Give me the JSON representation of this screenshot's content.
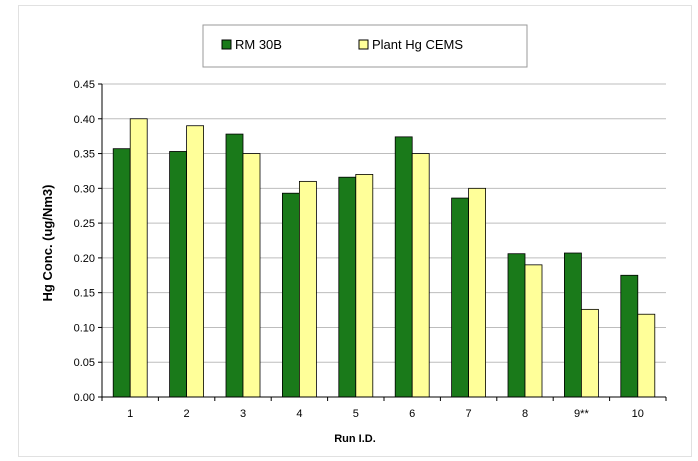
{
  "chart_data": {
    "type": "bar",
    "title": "",
    "xlabel": "Run I.D.",
    "ylabel": "Hg Conc. (ug/Nm3)",
    "categories": [
      "1",
      "2",
      "3",
      "4",
      "5",
      "6",
      "7",
      "8",
      "9**",
      "10"
    ],
    "series": [
      {
        "name": "RM 30B",
        "color": "#1a7a1a",
        "values": [
          0.357,
          0.353,
          0.378,
          0.293,
          0.316,
          0.374,
          0.286,
          0.206,
          0.207,
          0.175
        ]
      },
      {
        "name": "Plant Hg CEMS",
        "color": "#ffff99",
        "values": [
          0.4,
          0.39,
          0.35,
          0.31,
          0.32,
          0.35,
          0.3,
          0.19,
          0.126,
          0.119
        ]
      }
    ],
    "ylim": [
      0,
      0.45
    ],
    "yticks": [
      "0.00",
      "0.05",
      "0.10",
      "0.15",
      "0.20",
      "0.25",
      "0.30",
      "0.35",
      "0.40",
      "0.45"
    ],
    "grid": true,
    "legend_position": "top-center"
  }
}
